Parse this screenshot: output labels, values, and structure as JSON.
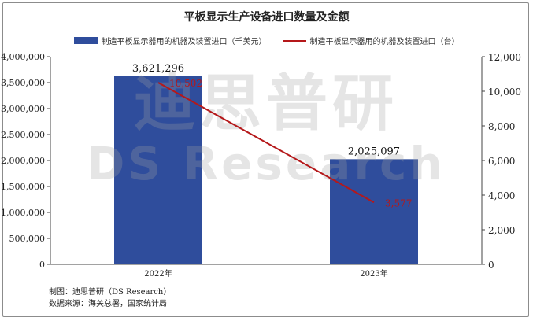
{
  "chart_data": {
    "type": "bar+line",
    "title": "平板显示生产设备进口数量及金额",
    "categories": [
      "2022年",
      "2023年"
    ],
    "series": [
      {
        "name": "制造平板显示器用的机器及装置进口（千美元）",
        "type": "bar",
        "axis": "left",
        "values": [
          3621296,
          2025097
        ],
        "labels": [
          "3,621,296",
          "2,025,097"
        ],
        "color": "#2f4d9c"
      },
      {
        "name": "制造平板显示器用的机器及装置进口（台）",
        "type": "line",
        "axis": "right",
        "values": [
          10502,
          3577
        ],
        "labels": [
          "10,502",
          "3,577"
        ],
        "color": "#b5181a"
      }
    ],
    "y_left": {
      "min": 0,
      "max": 4000000,
      "ticks": [
        "0",
        "500,000",
        "1,000,000",
        "1,500,000",
        "2,000,000",
        "2,500,000",
        "3,000,000",
        "3,500,000",
        "4,000,000"
      ]
    },
    "y_right": {
      "min": 0,
      "max": 12000,
      "ticks": [
        "0",
        "2,000",
        "4,000",
        "6,000",
        "8,000",
        "10,000",
        "12,000"
      ]
    },
    "legend_position": "top",
    "grid": false
  },
  "watermark": {
    "line1": "迪思普研",
    "line2": "DS Research"
  },
  "footer": {
    "maker": "制图：迪思普研（DS Research）",
    "source": "数据来源：海关总署，国家统计局"
  }
}
